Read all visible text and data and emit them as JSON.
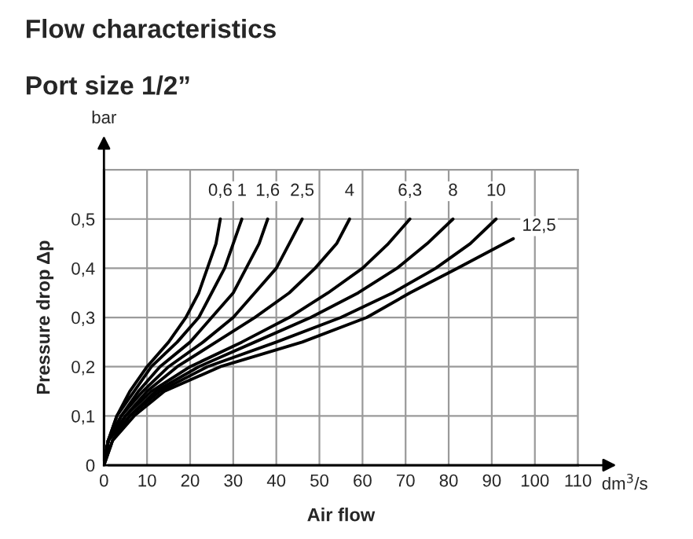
{
  "chart_data": {
    "type": "line",
    "title": "Flow characteristics",
    "subtitle": "Port size 1/2”",
    "xlabel": "Air flow",
    "ylabel": "Pressure drop Δp",
    "annotations": [
      "bar",
      "dm$^{3}$/s"
    ],
    "xlim": [
      0,
      110
    ],
    "xticks": [
      0,
      10,
      20,
      30,
      40,
      50,
      60,
      70,
      80,
      90,
      100,
      110
    ],
    "ylim": [
      0,
      0.6
    ],
    "yticks": [
      {
        "value": 0,
        "label": "0"
      },
      {
        "value": 0.1,
        "label": "0,1"
      },
      {
        "value": 0.2,
        "label": "0,2"
      },
      {
        "value": 0.3,
        "label": "0,3"
      },
      {
        "value": 0.4,
        "label": "0,4"
      },
      {
        "value": 0.5,
        "label": "0,5"
      }
    ],
    "grid": true,
    "legend": false,
    "series": [
      {
        "name": "0,6",
        "color": "#000000",
        "x": [
          0,
          1,
          3,
          6,
          10,
          15,
          19,
          22,
          24,
          26,
          27
        ],
        "values": [
          0,
          0.05,
          0.1,
          0.15,
          0.2,
          0.25,
          0.3,
          0.35,
          0.4,
          0.45,
          0.5
        ]
      },
      {
        "name": "1",
        "color": "#000000",
        "x": [
          0,
          1,
          3,
          7,
          11,
          17,
          22,
          25,
          28,
          30,
          32
        ],
        "values": [
          0,
          0.05,
          0.1,
          0.15,
          0.2,
          0.25,
          0.3,
          0.35,
          0.4,
          0.45,
          0.5
        ]
      },
      {
        "name": "1,6",
        "color": "#000000",
        "x": [
          0,
          1,
          4,
          8,
          13,
          20,
          25,
          30,
          33,
          36,
          38
        ],
        "values": [
          0,
          0.05,
          0.1,
          0.15,
          0.2,
          0.25,
          0.3,
          0.35,
          0.4,
          0.45,
          0.5
        ]
      },
      {
        "name": "2,5",
        "color": "#000000",
        "x": [
          0,
          1,
          4,
          9,
          15,
          23,
          30,
          35,
          40,
          43,
          46
        ],
        "values": [
          0,
          0.05,
          0.1,
          0.15,
          0.2,
          0.25,
          0.3,
          0.35,
          0.4,
          0.45,
          0.5
        ]
      },
      {
        "name": "4",
        "color": "#000000",
        "x": [
          0,
          1,
          5,
          10,
          17,
          26,
          35,
          43,
          49,
          54,
          57
        ],
        "values": [
          0,
          0.05,
          0.1,
          0.15,
          0.2,
          0.25,
          0.3,
          0.35,
          0.4,
          0.45,
          0.5
        ]
      },
      {
        "name": "6,3",
        "color": "#000000",
        "x": [
          0,
          1,
          5,
          11,
          20,
          32,
          43,
          52,
          60,
          66,
          71
        ],
        "values": [
          0,
          0.05,
          0.1,
          0.15,
          0.2,
          0.25,
          0.3,
          0.35,
          0.4,
          0.45,
          0.5
        ]
      },
      {
        "name": "8",
        "color": "#000000",
        "x": [
          0,
          1,
          6,
          12,
          22,
          35,
          48,
          59,
          68,
          75,
          81
        ],
        "values": [
          0,
          0.05,
          0.1,
          0.15,
          0.2,
          0.25,
          0.3,
          0.35,
          0.4,
          0.45,
          0.5
        ]
      },
      {
        "name": "10",
        "color": "#000000",
        "x": [
          0,
          2,
          6,
          13,
          24,
          40,
          55,
          67,
          77,
          85,
          91
        ],
        "values": [
          0,
          0.05,
          0.1,
          0.15,
          0.2,
          0.25,
          0.3,
          0.35,
          0.4,
          0.45,
          0.5
        ]
      },
      {
        "name": "12,5",
        "color": "#000000",
        "x": [
          0,
          2,
          7,
          14,
          27,
          46,
          61,
          71,
          82,
          95
        ],
        "values": [
          0,
          0.05,
          0.1,
          0.15,
          0.2,
          0.25,
          0.3,
          0.35,
          0.4,
          0.46
        ]
      }
    ]
  }
}
